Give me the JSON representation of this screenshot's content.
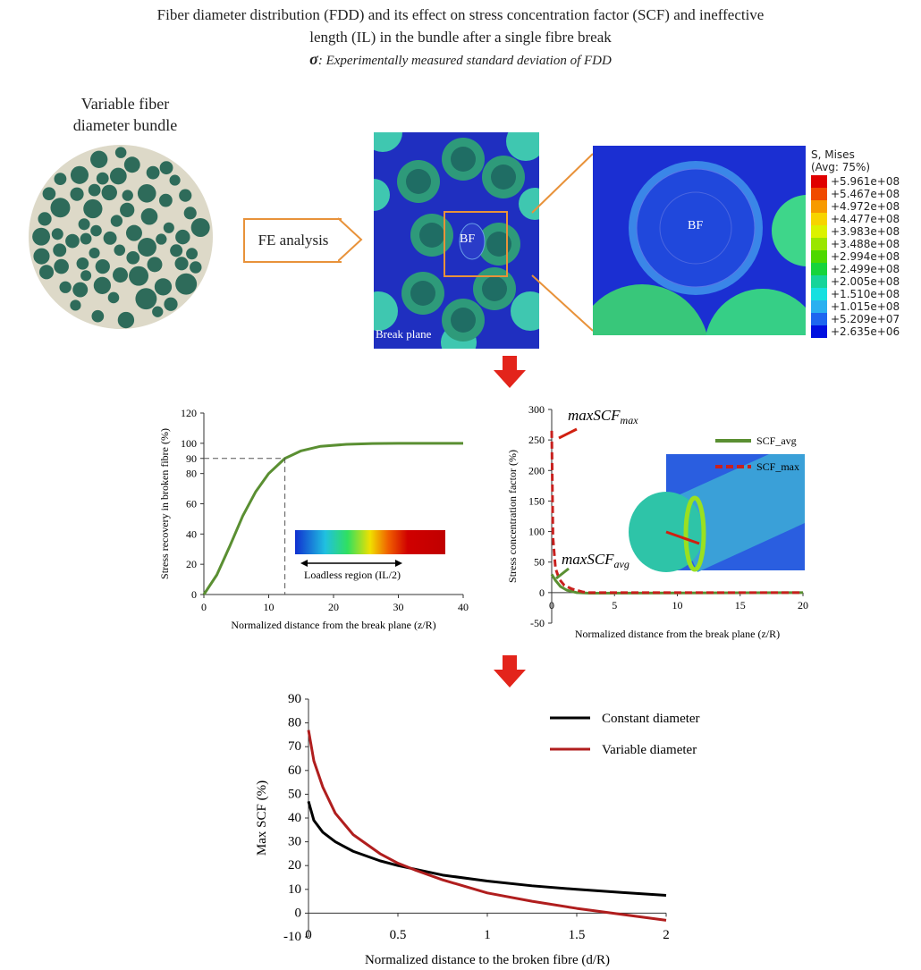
{
  "header": {
    "title_line1": "Fiber diameter distribution (FDD) and its effect on stress concentration factor (SCF) and ineffective",
    "title_line2": "length (IL) in the bundle after a single fibre break",
    "sigma_symbol": "σ",
    "sigma_note": ": Experimentally measured standard deviation of FDD"
  },
  "bundle": {
    "label_line1": "Variable fiber",
    "label_line2": "diameter bundle"
  },
  "fe": {
    "button": "FE analysis",
    "bf_label": "BF",
    "break_plane": "Break plane",
    "zoom_bf_label": "BF"
  },
  "contour_legend": {
    "title1": "S, Mises",
    "title2": "(Avg: 75%)",
    "values": [
      "+5.961e+08",
      "+5.467e+08",
      "+4.972e+08",
      "+4.477e+08",
      "+3.983e+08",
      "+3.488e+08",
      "+2.994e+08",
      "+2.499e+08",
      "+2.005e+08",
      "+1.510e+08",
      "+1.015e+08",
      "+5.209e+07",
      "+2.635e+06"
    ],
    "colors": [
      "#e00000",
      "#f04a00",
      "#f79a00",
      "#f7d400",
      "#dcf200",
      "#9ae600",
      "#4ed800",
      "#16d43c",
      "#16d49a",
      "#16e0e0",
      "#2ab0f0",
      "#1e66f0",
      "#0010e0"
    ]
  },
  "chart_data": [
    {
      "type": "line",
      "title": "",
      "xlabel": "Normalized distance from the break plane (z/R)",
      "ylabel": "Stress recovery in broken fibre (%)",
      "xlim": [
        0,
        40
      ],
      "ylim": [
        0,
        120
      ],
      "xticks": [
        0,
        10,
        20,
        30,
        40
      ],
      "yticks": [
        0,
        20,
        40,
        60,
        80,
        90,
        100,
        120
      ],
      "series": [
        {
          "name": "Stress recovery",
          "color": "#5a8f32",
          "x": [
            0,
            2,
            4,
            6,
            8,
            10,
            12.5,
            15,
            18,
            22,
            26,
            30,
            40
          ],
          "y": [
            0,
            13,
            32,
            52,
            68,
            80,
            90,
            95,
            98,
            99.3,
            99.8,
            100,
            100
          ]
        }
      ],
      "annotations": {
        "ref_y": 90,
        "ref_x": 12.5,
        "bar_label": "Loadless region (IL/2)"
      }
    },
    {
      "type": "line",
      "title": "",
      "xlabel": "Normalized distance from the break plane (z/R)",
      "ylabel": "Stress concentration factor (%)",
      "xlim": [
        0,
        20
      ],
      "ylim": [
        -50,
        300
      ],
      "xticks": [
        0,
        5,
        10,
        15,
        20
      ],
      "yticks": [
        -50,
        0,
        50,
        100,
        150,
        200,
        250,
        300
      ],
      "series": [
        {
          "name": "SCF_avg",
          "color": "#5a8f32",
          "dash": false,
          "x": [
            0,
            0.3,
            0.7,
            1.2,
            2,
            3,
            20
          ],
          "y": [
            30,
            20,
            10,
            4,
            0,
            -1,
            0
          ]
        },
        {
          "name": "SCF_max",
          "color": "#c8201e",
          "dash": true,
          "x": [
            0,
            0.1,
            0.3,
            0.6,
            1,
            1.6,
            2.5,
            3,
            20
          ],
          "y": [
            265,
            90,
            40,
            22,
            12,
            6,
            1,
            0,
            0
          ]
        }
      ],
      "annotations": {
        "max_label": "maxSCF",
        "max_sub": "max",
        "avg_label": "maxSCF",
        "avg_sub": "avg"
      }
    },
    {
      "type": "line",
      "title": "",
      "xlabel": "Normalized distance to the broken fibre (d/R)",
      "ylabel": "Max SCF (%)",
      "xlim": [
        0,
        2
      ],
      "ylim": [
        -10,
        90
      ],
      "xticks": [
        0,
        0.5,
        1,
        1.5,
        2
      ],
      "yticks": [
        -10,
        0,
        10,
        20,
        30,
        40,
        50,
        60,
        70,
        80,
        90
      ],
      "series": [
        {
          "name": "Constant diameter",
          "color": "#000000",
          "x": [
            0,
            0.03,
            0.08,
            0.15,
            0.25,
            0.4,
            0.5,
            0.75,
            1,
            1.25,
            1.5,
            1.75,
            2
          ],
          "y": [
            47,
            39,
            34,
            30,
            26,
            22,
            20,
            16,
            13.5,
            11.5,
            10,
            8.7,
            7.5
          ]
        },
        {
          "name": "Variable diameter",
          "color": "#b01e1e",
          "x": [
            0,
            0.03,
            0.08,
            0.15,
            0.25,
            0.4,
            0.5,
            0.6,
            0.75,
            1,
            1.25,
            1.5,
            1.75,
            2
          ],
          "y": [
            77,
            64,
            53,
            42,
            33,
            25,
            21,
            18,
            14,
            8.5,
            5,
            2,
            -0.5,
            -3
          ]
        }
      ]
    }
  ]
}
